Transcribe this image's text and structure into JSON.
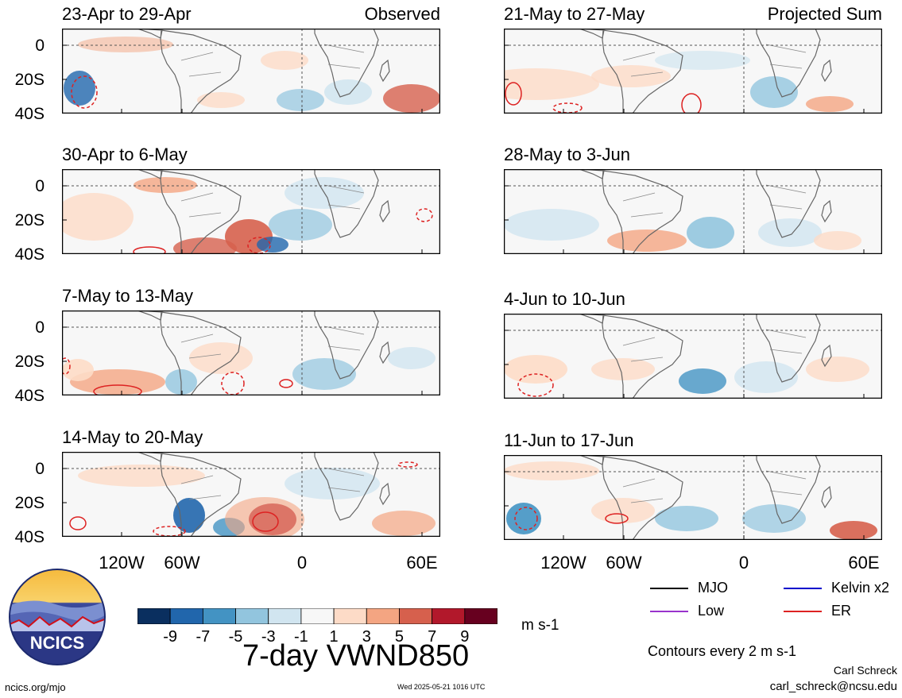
{
  "panels_left": [
    {
      "label": "23-Apr to 29-Apr",
      "tag": "Observed"
    },
    {
      "label": "30-Apr to 6-May",
      "tag": ""
    },
    {
      "label": "7-May to 13-May",
      "tag": ""
    },
    {
      "label": "14-May to 20-May",
      "tag": ""
    }
  ],
  "panels_right": [
    {
      "label": "21-May to 27-May",
      "tag": "Projected Sum"
    },
    {
      "label": "28-May to 3-Jun",
      "tag": ""
    },
    {
      "label": "4-Jun to 10-Jun",
      "tag": ""
    },
    {
      "label": "11-Jun to 17-Jun",
      "tag": ""
    }
  ],
  "y_ticks": [
    "0",
    "20S",
    "40S"
  ],
  "x_ticks": [
    "120W",
    "60W",
    "0",
    "60E"
  ],
  "legend": {
    "mjo": "MJO",
    "kelvin": "Kelvin x2",
    "low": "Low",
    "er": "ER",
    "colors": {
      "mjo": "#000000",
      "kelvin": "#0000cc",
      "low": "#9933cc",
      "er": "#dd2222"
    }
  },
  "colorbar": {
    "colors": [
      "#0a2f5f",
      "#2166ac",
      "#4393c3",
      "#92c5de",
      "#d1e5f0",
      "#f7f7f7",
      "#fddbc7",
      "#f4a582",
      "#d6604d",
      "#b2182b",
      "#67001f"
    ],
    "ticks": [
      "-9",
      "-7",
      "-5",
      "-3",
      "-1",
      "1",
      "3",
      "5",
      "7",
      "9"
    ],
    "units": "m s-1"
  },
  "title": "7-day VWND850",
  "contours_note": "Contours every 2 m s-1",
  "author": "Carl Schreck",
  "email": "carl_schreck@ncsu.edu",
  "site": "ncics.org/mjo",
  "timestamp": "Wed 2025-05-21 1016 UTC",
  "logo_text": "NCICS"
}
